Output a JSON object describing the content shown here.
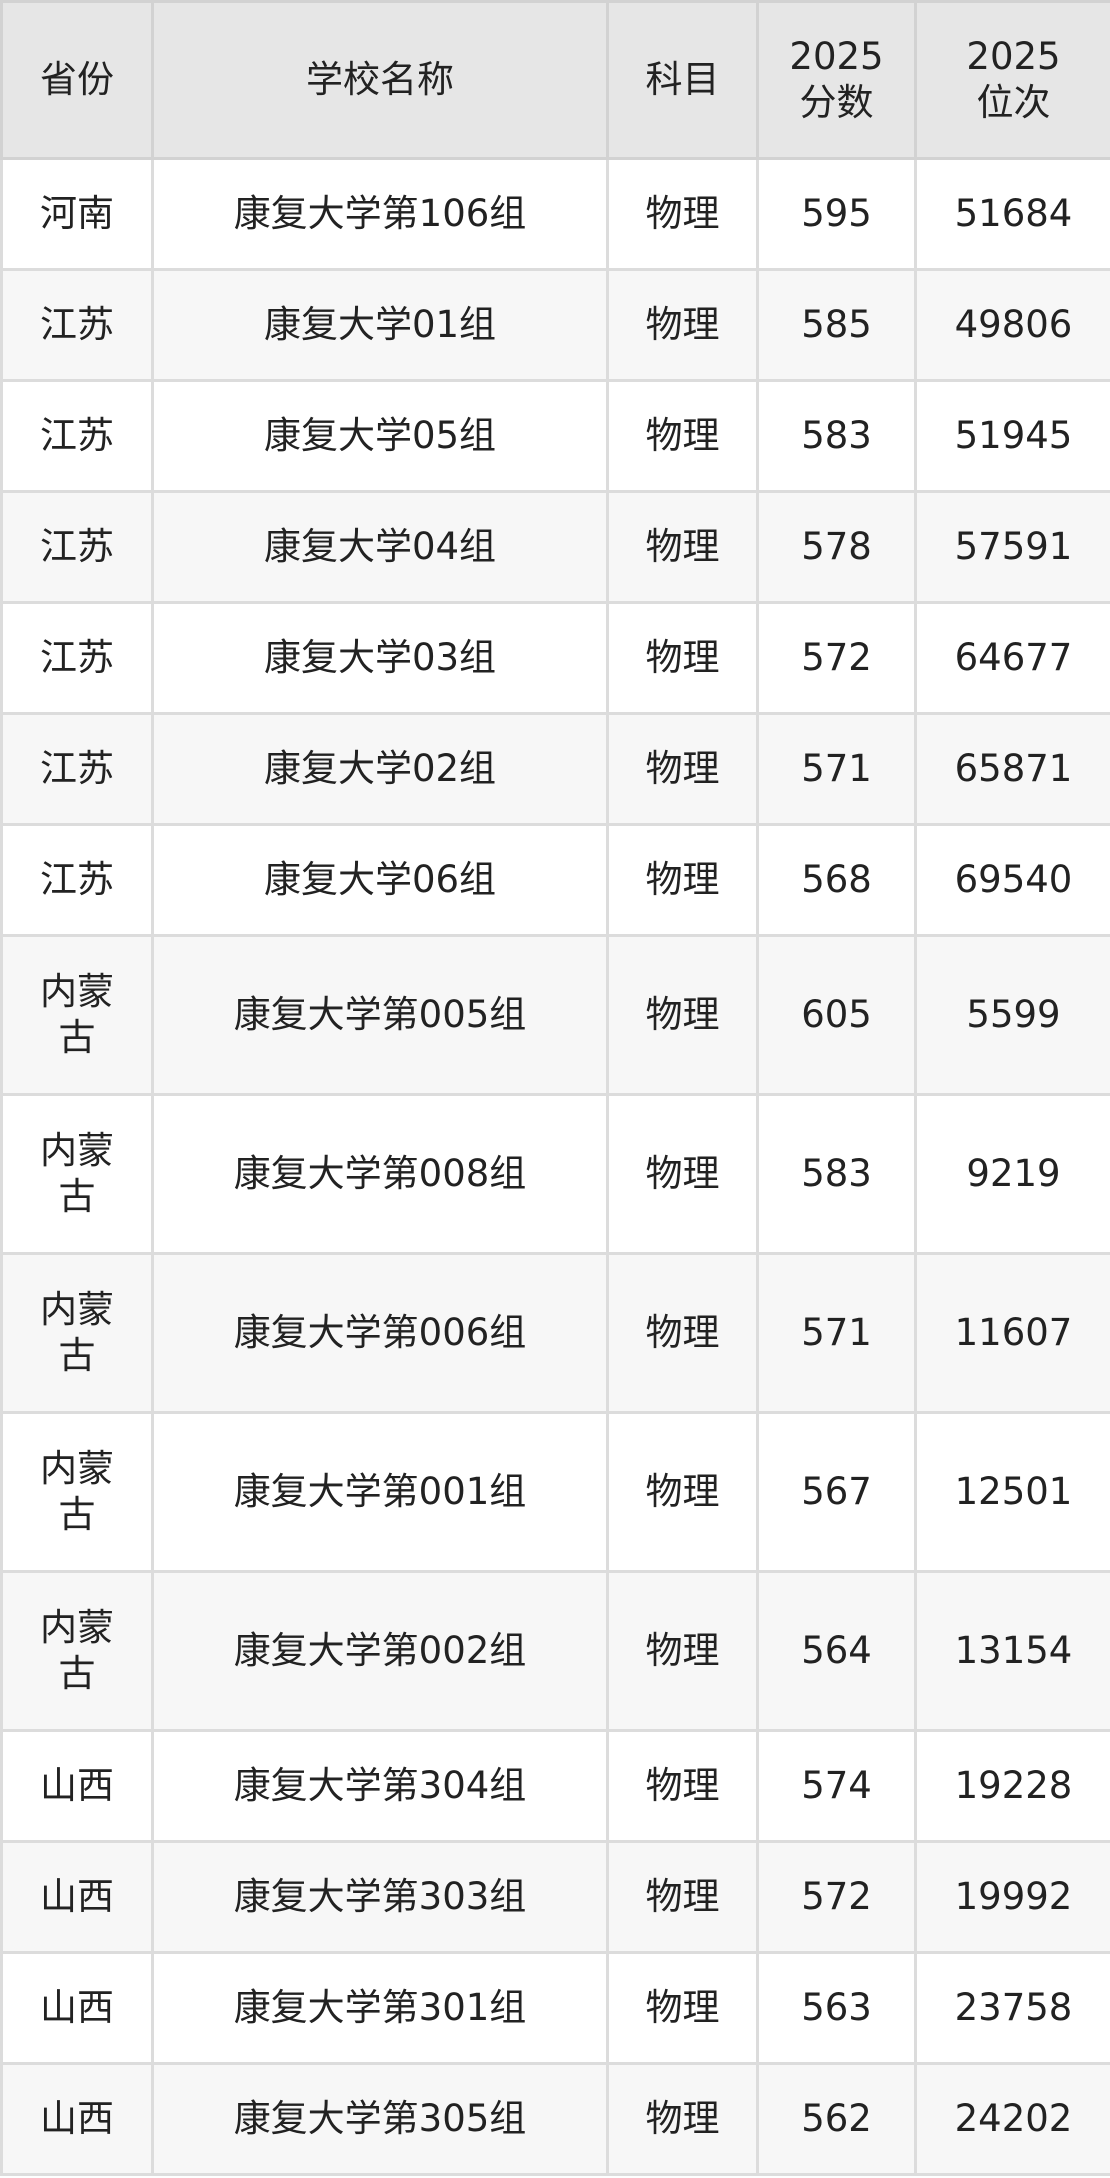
{
  "headers": [
    "省份",
    "学校名称",
    "科目",
    "2025\n分数",
    "2025\n位次"
  ],
  "header_lines": {
    "score": [
      "2025",
      "分数"
    ],
    "rank": [
      "2025",
      "位次"
    ]
  },
  "rows": [
    {
      "province": "河南",
      "school": "康复大学第106组",
      "subject": "物理",
      "score": "595",
      "rank": "51684"
    },
    {
      "province": "江苏",
      "school": "康复大学01组",
      "subject": "物理",
      "score": "585",
      "rank": "49806"
    },
    {
      "province": "江苏",
      "school": "康复大学05组",
      "subject": "物理",
      "score": "583",
      "rank": "51945"
    },
    {
      "province": "江苏",
      "school": "康复大学04组",
      "subject": "物理",
      "score": "578",
      "rank": "57591"
    },
    {
      "province": "江苏",
      "school": "康复大学03组",
      "subject": "物理",
      "score": "572",
      "rank": "64677"
    },
    {
      "province": "江苏",
      "school": "康复大学02组",
      "subject": "物理",
      "score": "571",
      "rank": "65871"
    },
    {
      "province": "江苏",
      "school": "康复大学06组",
      "subject": "物理",
      "score": "568",
      "rank": "69540"
    },
    {
      "province": "内蒙古",
      "school": "康复大学第005组",
      "subject": "物理",
      "score": "605",
      "rank": "5599"
    },
    {
      "province": "内蒙古",
      "school": "康复大学第008组",
      "subject": "物理",
      "score": "583",
      "rank": "9219"
    },
    {
      "province": "内蒙古",
      "school": "康复大学第006组",
      "subject": "物理",
      "score": "571",
      "rank": "11607"
    },
    {
      "province": "内蒙古",
      "school": "康复大学第001组",
      "subject": "物理",
      "score": "567",
      "rank": "12501"
    },
    {
      "province": "内蒙古",
      "school": "康复大学第002组",
      "subject": "物理",
      "score": "564",
      "rank": "13154"
    },
    {
      "province": "山西",
      "school": "康复大学第304组",
      "subject": "物理",
      "score": "574",
      "rank": "19228"
    },
    {
      "province": "山西",
      "school": "康复大学第303组",
      "subject": "物理",
      "score": "572",
      "rank": "19992"
    },
    {
      "province": "山西",
      "school": "康复大学第301组",
      "subject": "物理",
      "score": "563",
      "rank": "23758"
    },
    {
      "province": "山西",
      "school": "康复大学第305组",
      "subject": "物理",
      "score": "562",
      "rank": "24202"
    }
  ],
  "colors": {
    "header_bg": "#e6e6e6",
    "alt_row_bg": "#f7f7f7",
    "border": "#dcdcdc",
    "text": "#222222"
  }
}
